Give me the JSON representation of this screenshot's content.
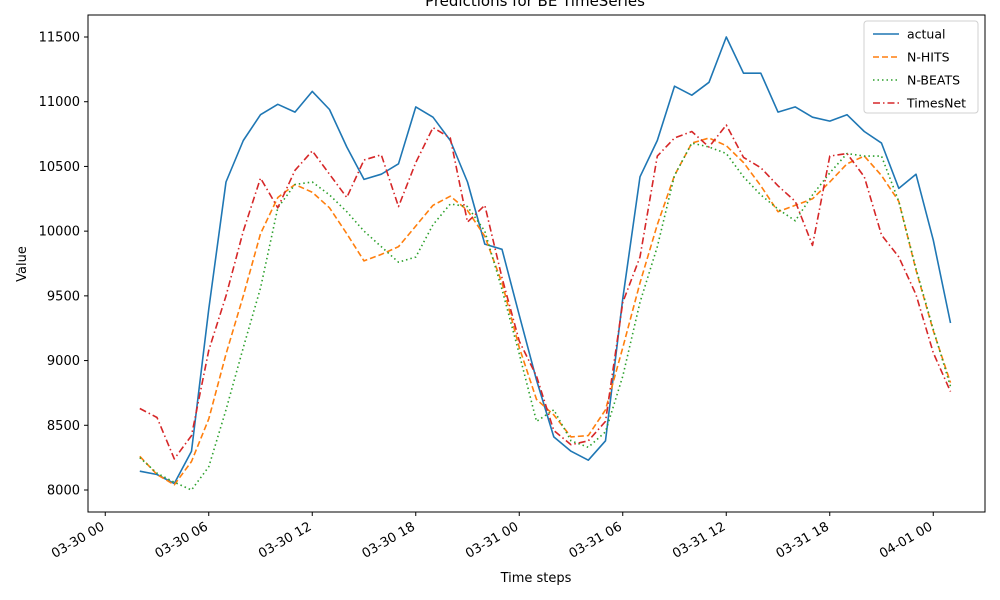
{
  "chart_data": {
    "type": "line",
    "title": "Predictions for BE TimeSeries",
    "xlabel": "Time steps",
    "ylabel": "Value",
    "x_start": "2024-03-30 02:00",
    "x_step_hours": 1,
    "x_range": [
      "2024-03-29 23:00",
      "2024-04-01 03:00"
    ],
    "ylim": [
      7830,
      11670
    ],
    "x_tick_labels": [
      "03-30 00",
      "03-30 06",
      "03-30 12",
      "03-30 18",
      "03-31 00",
      "03-31 06",
      "03-31 12",
      "03-31 18",
      "04-01 00"
    ],
    "y_ticks": [
      8000,
      8500,
      9000,
      9500,
      10000,
      10500,
      11000,
      11500
    ],
    "grid": false,
    "legend_position": "top-right",
    "series": [
      {
        "name": "actual",
        "color": "#1f77b4",
        "dash": "solid",
        "values": [
          8145,
          8120,
          8050,
          8300,
          9400,
          10380,
          10700,
          10900,
          10980,
          10920,
          11080,
          10940,
          10650,
          10400,
          10440,
          10520,
          10960,
          10880,
          10700,
          10380,
          9900,
          9860,
          9350,
          8850,
          8410,
          8300,
          8230,
          8380,
          9480,
          10420,
          10700,
          11120,
          11050,
          11150,
          11500,
          11220,
          11220,
          10920,
          10960,
          10880,
          10850,
          10900,
          10770,
          10680,
          10330,
          10440,
          9930,
          9290
        ]
      },
      {
        "name": "N-HITS",
        "color": "#ff7f0e",
        "dash": "dashed",
        "values": [
          8260,
          8120,
          8040,
          8220,
          8550,
          9050,
          9500,
          9980,
          10260,
          10360,
          10300,
          10180,
          9980,
          9770,
          9820,
          9880,
          10040,
          10200,
          10270,
          10160,
          9960,
          9600,
          9100,
          8700,
          8580,
          8410,
          8420,
          8620,
          9100,
          9600,
          10050,
          10430,
          10680,
          10720,
          10660,
          10530,
          10350,
          10150,
          10200,
          10250,
          10380,
          10520,
          10580,
          10430,
          10230,
          9700,
          9230,
          8830
        ]
      },
      {
        "name": "N-BEATS",
        "color": "#2ca02c",
        "dash": "dotted",
        "values": [
          8250,
          8130,
          8060,
          8000,
          8180,
          8620,
          9100,
          9560,
          10180,
          10360,
          10380,
          10280,
          10150,
          10000,
          9880,
          9760,
          9800,
          10050,
          10210,
          10190,
          10000,
          9550,
          9050,
          8530,
          8620,
          8380,
          8330,
          8450,
          8880,
          9450,
          9880,
          10430,
          10680,
          10650,
          10600,
          10420,
          10280,
          10170,
          10080,
          10280,
          10450,
          10600,
          10580,
          10580,
          10230,
          9710,
          9240,
          8800
        ]
      },
      {
        "name": "TimesNet",
        "color": "#d62728",
        "dash": "dashdot",
        "values": [
          8630,
          8560,
          8240,
          8420,
          9080,
          9500,
          10000,
          10410,
          10180,
          10470,
          10620,
          10440,
          10260,
          10550,
          10590,
          10190,
          10530,
          10800,
          10720,
          10070,
          10200,
          9640,
          9150,
          8880,
          8460,
          8350,
          8380,
          8530,
          9450,
          9800,
          10580,
          10720,
          10770,
          10650,
          10820,
          10570,
          10490,
          10350,
          10230,
          9890,
          10580,
          10600,
          10420,
          9970,
          9800,
          9510,
          9060,
          8760
        ]
      }
    ]
  }
}
